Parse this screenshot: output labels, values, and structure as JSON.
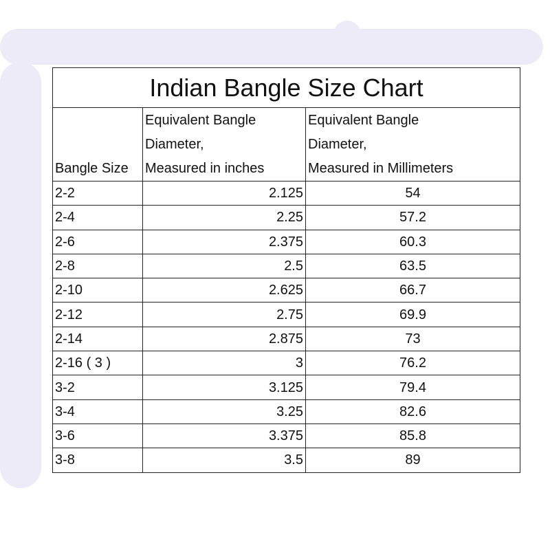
{
  "title": "Indian Bangle Size Chart",
  "headers": [
    "Bangle Size",
    "Equivalent Bangle Diameter, Measured in inches",
    "Equivalent Bangle Diameter, Measured in Millimeters"
  ],
  "header_lines": [
    [
      "Bangle Size"
    ],
    [
      "Equivalent Bangle",
      "Diameter,",
      "Measured in inches"
    ],
    [
      "Equivalent Bangle",
      "Diameter,",
      "Measured in Millimeters"
    ]
  ],
  "rows": [
    [
      "2-2",
      "2.125",
      "54"
    ],
    [
      "2-4",
      "2.25",
      "57.2"
    ],
    [
      "2-6",
      "2.375",
      "60.3"
    ],
    [
      "2-8",
      "2.5",
      "63.5"
    ],
    [
      "2-10",
      "2.625",
      "66.7"
    ],
    [
      "2-12",
      "2.75",
      "69.9"
    ],
    [
      "2-14",
      "2.875",
      "73"
    ],
    [
      "2-16 ( 3 )",
      "3",
      "76.2"
    ],
    [
      "3-2",
      "3.125",
      "79.4"
    ],
    [
      "3-4",
      "3.25",
      "82.6"
    ],
    [
      "3-6",
      "3.375",
      "85.8"
    ],
    [
      "3-8",
      "3.5",
      "89"
    ]
  ],
  "colors": {
    "background_strokes": "#ecebf7",
    "border": "#222222"
  }
}
